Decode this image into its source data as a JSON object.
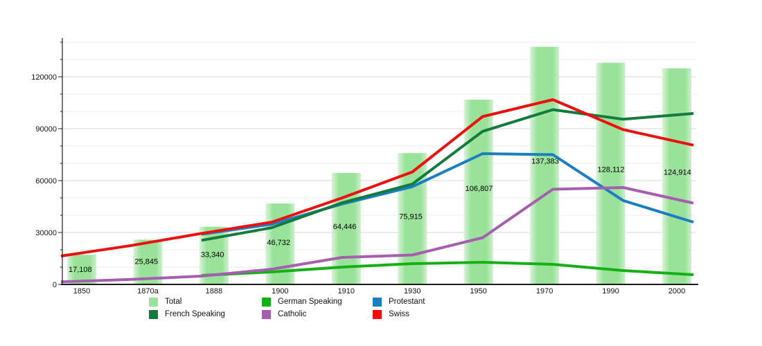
{
  "chart_data": {
    "type": "combo",
    "title": "",
    "xlabel": "",
    "ylabel": "",
    "categories": [
      "1850",
      "1870a",
      "1888",
      "1900",
      "1910",
      "1930",
      "1950",
      "1970",
      "1990",
      "2000"
    ],
    "bar_series": {
      "name": "Total",
      "color": "#9ae29a",
      "values": [
        17108,
        25845,
        33340,
        46732,
        64446,
        75915,
        106807,
        137383,
        128112,
        124914
      ],
      "value_labels": [
        "17,108",
        "25,845",
        "33,340",
        "46,732",
        "64,446",
        "75,915",
        "106,807",
        "137,383",
        "128,112",
        "124,914"
      ]
    },
    "line_series": [
      {
        "name": "German Speaking",
        "color": "#15b015",
        "values": [
          null,
          null,
          5200,
          7200,
          10000,
          12000,
          12800,
          11600,
          8000,
          5600
        ]
      },
      {
        "name": "Protestant",
        "color": "#1b7ec2",
        "values": [
          null,
          null,
          29000,
          34800,
          46500,
          56500,
          75600,
          75000,
          48500,
          36000
        ]
      },
      {
        "name": "French Speaking",
        "color": "#147a3d",
        "values": [
          null,
          null,
          25500,
          32800,
          47200,
          58000,
          88500,
          101000,
          95500,
          98800
        ]
      },
      {
        "name": "Catholic",
        "color": "#a55fae",
        "values": [
          1500,
          2900,
          4800,
          8800,
          15600,
          17000,
          27000,
          55000,
          56000,
          47000
        ]
      },
      {
        "name": "Swiss",
        "color": "#ee0f0f",
        "values": [
          16400,
          22500,
          29500,
          36000,
          50000,
          65000,
          97000,
          106800,
          89500,
          80500
        ]
      }
    ],
    "ylim": [
      0,
      140000
    ],
    "y_major_step": 30000,
    "y_minor_step": 10000,
    "grid": "horizontal",
    "legend_position": "bottom"
  },
  "axes": {
    "y_tick_labels": [
      "0",
      "30000",
      "60000",
      "90000",
      "120000"
    ],
    "y_tick_values": [
      0,
      30000,
      60000,
      90000,
      120000
    ],
    "x_tick_labels": [
      "1850",
      "1870a",
      "1888",
      "1900",
      "1910",
      "1930",
      "1950",
      "1970",
      "1990",
      "2000"
    ]
  },
  "legend": {
    "items": [
      {
        "label": "Total",
        "color": "#9ae29a"
      },
      {
        "label": "German Speaking",
        "color": "#15b015"
      },
      {
        "label": "Protestant",
        "color": "#1b7ec2"
      },
      {
        "label": "French Speaking",
        "color": "#147a3d"
      },
      {
        "label": "Catholic",
        "color": "#a55fae"
      },
      {
        "label": "Swiss",
        "color": "#ee0f0f"
      }
    ]
  },
  "colors": {
    "bar_fill": "#9ae29a",
    "bar_fill_edge": "#d9f4d9",
    "grid_minor": "#ececec",
    "grid_major": "#d6d6d6",
    "axis": "#1a1a1a",
    "text": "#111111"
  }
}
